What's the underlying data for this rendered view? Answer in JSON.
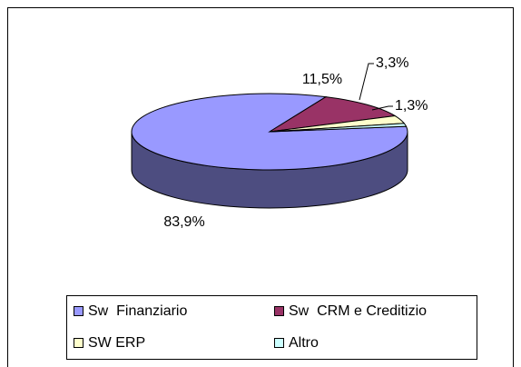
{
  "chart_data": {
    "type": "pie",
    "categories": [
      "Sw  Finanziario",
      "Sw  CRM e Creditizio",
      "SW ERP",
      "Altro"
    ],
    "values": [
      83.9,
      11.5,
      3.3,
      1.3
    ],
    "value_labels": [
      "83,9%",
      "11,5%",
      "3,3%",
      "1,3%"
    ],
    "colors": [
      "#9999ff",
      "#993366",
      "#ffffcc",
      "#ccffff"
    ]
  }
}
